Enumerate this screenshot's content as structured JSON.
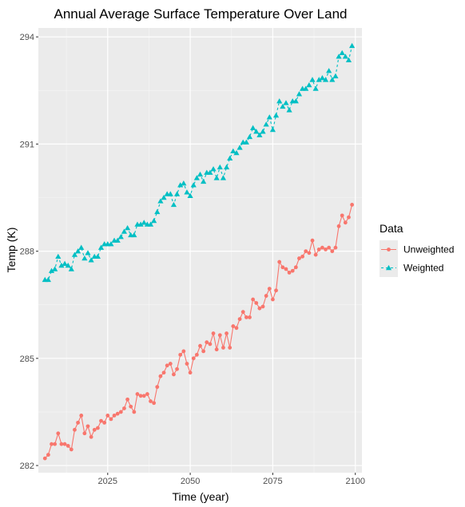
{
  "chart_data": {
    "type": "line",
    "title": "Annual Average Surface Temperature Over Land",
    "xlabel": "Time (year)",
    "ylabel": "Temp (K)",
    "xlim": [
      2004,
      2102
    ],
    "ylim": [
      281.8,
      294.25
    ],
    "x_ticks": [
      2025,
      2050,
      2075,
      2100
    ],
    "y_ticks": [
      282,
      285,
      288,
      291,
      294
    ],
    "grid": true,
    "legend": {
      "title": "Data",
      "position": "right"
    },
    "x": [
      2006,
      2007,
      2008,
      2009,
      2010,
      2011,
      2012,
      2013,
      2014,
      2015,
      2016,
      2017,
      2018,
      2019,
      2020,
      2021,
      2022,
      2023,
      2024,
      2025,
      2026,
      2027,
      2028,
      2029,
      2030,
      2031,
      2032,
      2033,
      2034,
      2035,
      2036,
      2037,
      2038,
      2039,
      2040,
      2041,
      2042,
      2043,
      2044,
      2045,
      2046,
      2047,
      2048,
      2049,
      2050,
      2051,
      2052,
      2053,
      2054,
      2055,
      2056,
      2057,
      2058,
      2059,
      2060,
      2061,
      2062,
      2063,
      2064,
      2065,
      2066,
      2067,
      2068,
      2069,
      2070,
      2071,
      2072,
      2073,
      2074,
      2075,
      2076,
      2077,
      2078,
      2079,
      2080,
      2081,
      2082,
      2083,
      2084,
      2085,
      2086,
      2087,
      2088,
      2089,
      2090,
      2091,
      2092,
      2093,
      2094,
      2095,
      2096,
      2097,
      2098,
      2099
    ],
    "series": [
      {
        "name": "Unweighted",
        "color": "#F8766D",
        "marker": "circle",
        "values": [
          282.2,
          282.3,
          282.6,
          282.6,
          282.9,
          282.6,
          282.6,
          282.55,
          282.45,
          283.0,
          283.2,
          283.4,
          282.9,
          283.1,
          282.8,
          283.0,
          283.05,
          283.25,
          283.2,
          283.4,
          283.3,
          283.4,
          283.45,
          283.5,
          283.6,
          283.85,
          283.65,
          283.5,
          284.0,
          283.95,
          283.95,
          284.0,
          283.8,
          283.75,
          284.2,
          284.5,
          284.6,
          284.8,
          284.85,
          284.55,
          284.7,
          285.1,
          285.2,
          284.85,
          284.6,
          285.0,
          285.1,
          285.35,
          285.2,
          285.45,
          285.4,
          285.7,
          285.25,
          285.65,
          285.3,
          285.7,
          285.3,
          285.9,
          285.85,
          286.1,
          286.3,
          286.15,
          286.15,
          286.65,
          286.55,
          286.4,
          286.45,
          286.75,
          286.95,
          286.65,
          286.9,
          287.7,
          287.55,
          287.5,
          287.4,
          287.45,
          287.55,
          287.8,
          287.85,
          288.0,
          287.95,
          288.3,
          287.9,
          288.05,
          288.1,
          288.05,
          288.1,
          288.0,
          288.1,
          288.7,
          289.0,
          288.8,
          288.95,
          289.3
        ]
      },
      {
        "name": "Weighted",
        "color": "#00BFC4",
        "marker": "triangle",
        "values": [
          287.2,
          287.2,
          287.45,
          287.5,
          287.85,
          287.6,
          287.65,
          287.6,
          287.5,
          287.9,
          288.0,
          288.1,
          287.8,
          287.95,
          287.75,
          287.85,
          287.85,
          288.1,
          288.2,
          288.2,
          288.2,
          288.3,
          288.3,
          288.4,
          288.55,
          288.65,
          288.45,
          288.45,
          288.75,
          288.75,
          288.8,
          288.75,
          288.75,
          288.85,
          289.1,
          289.4,
          289.5,
          289.6,
          289.6,
          289.3,
          289.6,
          289.85,
          289.9,
          289.65,
          289.55,
          289.85,
          290.05,
          290.15,
          289.95,
          290.2,
          290.2,
          290.3,
          290.05,
          290.35,
          290.05,
          290.35,
          290.6,
          290.8,
          290.75,
          290.9,
          291.05,
          291.05,
          291.2,
          291.45,
          291.35,
          291.25,
          291.35,
          291.55,
          291.75,
          291.4,
          291.8,
          292.2,
          292.05,
          292.15,
          291.95,
          292.2,
          292.2,
          292.4,
          292.55,
          292.55,
          292.65,
          292.8,
          292.55,
          292.8,
          292.85,
          292.8,
          293.05,
          292.8,
          292.9,
          293.45,
          293.55,
          293.45,
          293.35,
          293.75
        ]
      }
    ]
  }
}
